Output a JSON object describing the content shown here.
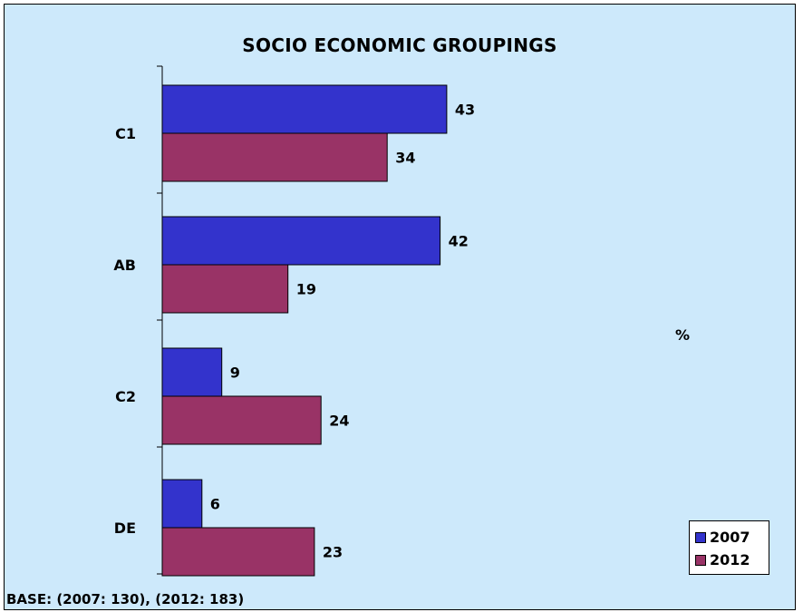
{
  "chart_data": {
    "type": "bar",
    "orientation": "horizontal",
    "title": "SOCIO ECONOMIC GROUPINGS",
    "unit_label": "%",
    "categories": [
      "C1",
      "AB",
      "C2",
      "DE"
    ],
    "series": [
      {
        "name": "2007",
        "color": "#3333cc",
        "values": [
          43,
          42,
          9,
          6
        ]
      },
      {
        "name": "2012",
        "color": "#993366",
        "values": [
          34,
          19,
          24,
          23
        ]
      }
    ],
    "xlim": [
      0,
      100
    ],
    "data_labels": true,
    "grid": false,
    "legend_position": "bottom-right",
    "background_color": "#cde9fb"
  },
  "footnote": "BASE: (2007: 130), (2012: 183)"
}
